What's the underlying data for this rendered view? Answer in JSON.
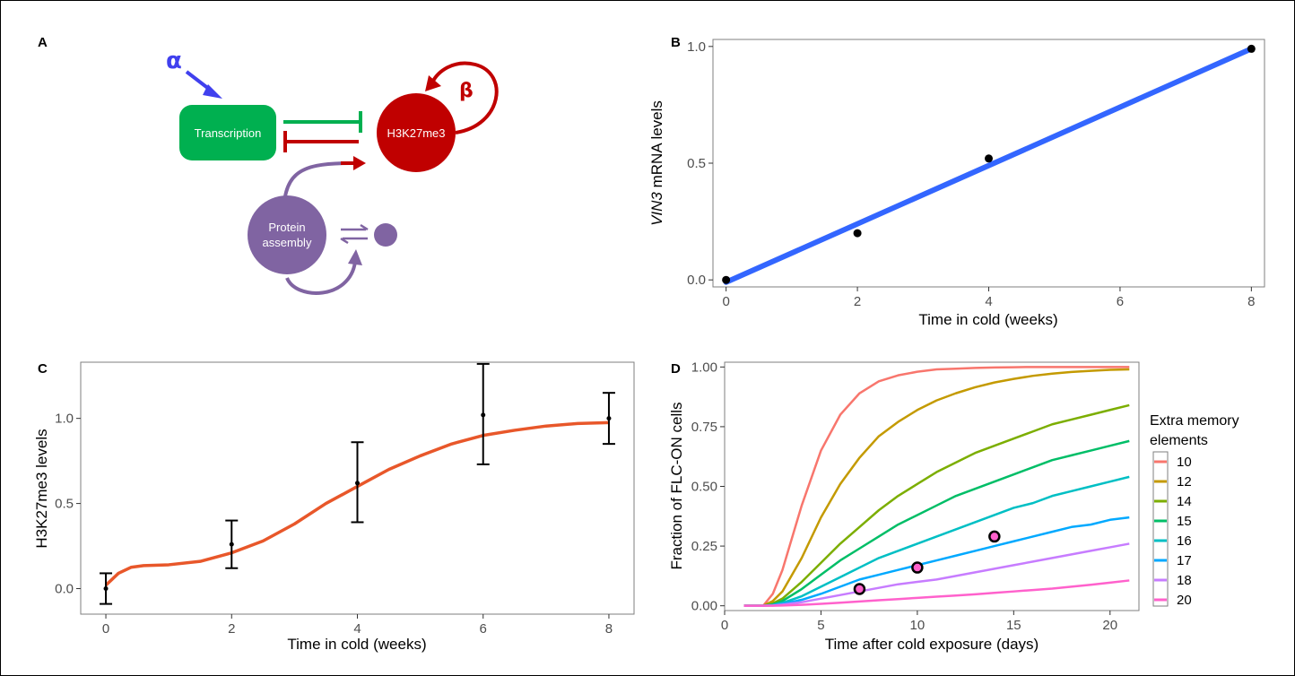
{
  "diagram": {
    "letter": "A",
    "transcription": "Transcription",
    "h3k27me3": "H3K27me3",
    "protein_line1": "Protein",
    "protein_line2": "assembly",
    "alpha": "α",
    "beta": "β"
  },
  "chart_data": [
    {
      "id": "B",
      "type": "scatter",
      "letter": "B",
      "xlabel": "Time in cold (weeks)",
      "ylabel_italic": "VIN3",
      "ylabel_rest": " mRNA levels",
      "xlim": [
        -0.2,
        8.2
      ],
      "ylim": [
        -0.03,
        1.03
      ],
      "xticks": [
        0,
        2,
        4,
        6,
        8
      ],
      "yticks": [
        0.0,
        0.5,
        1.0
      ],
      "ytick_labels": [
        "0.0",
        "0.5",
        "1.0"
      ],
      "points": {
        "x": [
          0,
          2,
          4,
          8
        ],
        "y": [
          0.0,
          0.2,
          0.52,
          0.99
        ]
      },
      "fit_line": {
        "x": [
          0,
          8
        ],
        "y": [
          -0.01,
          0.99
        ],
        "color": "#3366ff"
      },
      "grid": false
    },
    {
      "id": "C",
      "type": "line",
      "letter": "C",
      "xlabel": "Time in cold (weeks)",
      "ylabel": "H3K27me3 levels",
      "xlim": [
        -0.4,
        8.4
      ],
      "ylim": [
        -0.15,
        1.33
      ],
      "xticks": [
        0,
        2,
        4,
        6,
        8
      ],
      "yticks": [
        0.0,
        0.5,
        1.0
      ],
      "ytick_labels": [
        "0.0",
        "0.5",
        "1.0"
      ],
      "line": {
        "color": "#e8572a",
        "x": [
          0,
          0.2,
          0.4,
          0.6,
          1,
          1.5,
          2,
          2.5,
          3,
          3.5,
          4,
          4.5,
          5,
          5.5,
          6,
          6.5,
          7,
          7.5,
          8
        ],
        "y": [
          0.02,
          0.09,
          0.125,
          0.135,
          0.14,
          0.16,
          0.21,
          0.28,
          0.38,
          0.5,
          0.6,
          0.7,
          0.78,
          0.85,
          0.9,
          0.93,
          0.955,
          0.97,
          0.975
        ]
      },
      "points": {
        "x": [
          0,
          2,
          4,
          6,
          8
        ],
        "y": [
          0.0,
          0.26,
          0.62,
          1.02,
          1.0
        ],
        "err_low": [
          -0.09,
          0.12,
          0.39,
          0.73,
          0.85
        ],
        "err_high": [
          0.09,
          0.4,
          0.86,
          1.32,
          1.15
        ]
      },
      "grid": false
    },
    {
      "id": "D",
      "type": "line",
      "letter": "D",
      "xlabel": "Time after cold exposure (days)",
      "ylabel": "Fraction of FLC-ON cells",
      "xlim": [
        0,
        21.5
      ],
      "ylim": [
        -0.02,
        1.02
      ],
      "xticks": [
        0,
        5,
        10,
        15,
        20
      ],
      "yticks": [
        0.0,
        0.25,
        0.5,
        0.75,
        1.0
      ],
      "ytick_labels": [
        "0.00",
        "0.25",
        "0.50",
        "0.75",
        "1.00"
      ],
      "x": [
        1,
        2,
        2.5,
        3,
        4,
        5,
        6,
        7,
        8,
        9,
        10,
        11,
        12,
        13,
        14,
        15,
        16,
        17,
        18,
        19,
        20,
        21
      ],
      "series": [
        {
          "name": "10",
          "color": "#f8766d",
          "values": [
            0,
            0,
            0.05,
            0.15,
            0.42,
            0.65,
            0.8,
            0.89,
            0.94,
            0.965,
            0.98,
            0.99,
            0.993,
            0.996,
            0.998,
            0.999,
            1,
            1,
            1,
            1,
            1,
            1
          ]
        },
        {
          "name": "12",
          "color": "#c49a00",
          "values": [
            0,
            0,
            0.02,
            0.06,
            0.2,
            0.37,
            0.51,
            0.62,
            0.71,
            0.77,
            0.82,
            0.86,
            0.89,
            0.915,
            0.935,
            0.95,
            0.963,
            0.972,
            0.979,
            0.984,
            0.988,
            0.99
          ]
        },
        {
          "name": "14",
          "color": "#7cae00",
          "values": [
            0,
            0,
            0.01,
            0.03,
            0.1,
            0.18,
            0.26,
            0.33,
            0.4,
            0.46,
            0.51,
            0.56,
            0.6,
            0.64,
            0.67,
            0.7,
            0.73,
            0.76,
            0.78,
            0.8,
            0.82,
            0.84
          ]
        },
        {
          "name": "15",
          "color": "#00be67",
          "values": [
            0,
            0,
            0.005,
            0.02,
            0.07,
            0.13,
            0.19,
            0.24,
            0.29,
            0.34,
            0.38,
            0.42,
            0.46,
            0.49,
            0.52,
            0.55,
            0.58,
            0.61,
            0.63,
            0.65,
            0.67,
            0.69
          ]
        },
        {
          "name": "16",
          "color": "#00bfc4",
          "values": [
            0,
            0,
            0.004,
            0.012,
            0.04,
            0.08,
            0.12,
            0.16,
            0.2,
            0.23,
            0.26,
            0.29,
            0.32,
            0.35,
            0.38,
            0.41,
            0.43,
            0.46,
            0.48,
            0.5,
            0.52,
            0.54
          ]
        },
        {
          "name": "17",
          "color": "#00a9ff",
          "values": [
            0,
            0,
            0.002,
            0.008,
            0.025,
            0.05,
            0.08,
            0.11,
            0.13,
            0.15,
            0.17,
            0.19,
            0.21,
            0.23,
            0.25,
            0.27,
            0.29,
            0.31,
            0.33,
            0.34,
            0.36,
            0.37
          ]
        },
        {
          "name": "18",
          "color": "#c77cff",
          "values": [
            0,
            0,
            0.001,
            0.005,
            0.015,
            0.03,
            0.045,
            0.06,
            0.075,
            0.09,
            0.1,
            0.11,
            0.125,
            0.14,
            0.155,
            0.17,
            0.185,
            0.2,
            0.215,
            0.23,
            0.245,
            0.26
          ]
        },
        {
          "name": "20",
          "color": "#ff61cc",
          "values": [
            0,
            0,
            0,
            0.001,
            0.004,
            0.008,
            0.013,
            0.018,
            0.023,
            0.028,
            0.033,
            0.038,
            0.043,
            0.048,
            0.054,
            0.06,
            0.066,
            0.072,
            0.08,
            0.088,
            0.097,
            0.106
          ]
        }
      ],
      "points": {
        "x": [
          7,
          10,
          14
        ],
        "y": [
          0.07,
          0.16,
          0.29
        ],
        "fill": "#ff61cc",
        "stroke": "#000000"
      },
      "legend": {
        "title_line1": "Extra memory",
        "title_line2": "elements",
        "position": "right"
      },
      "grid": false
    }
  ]
}
